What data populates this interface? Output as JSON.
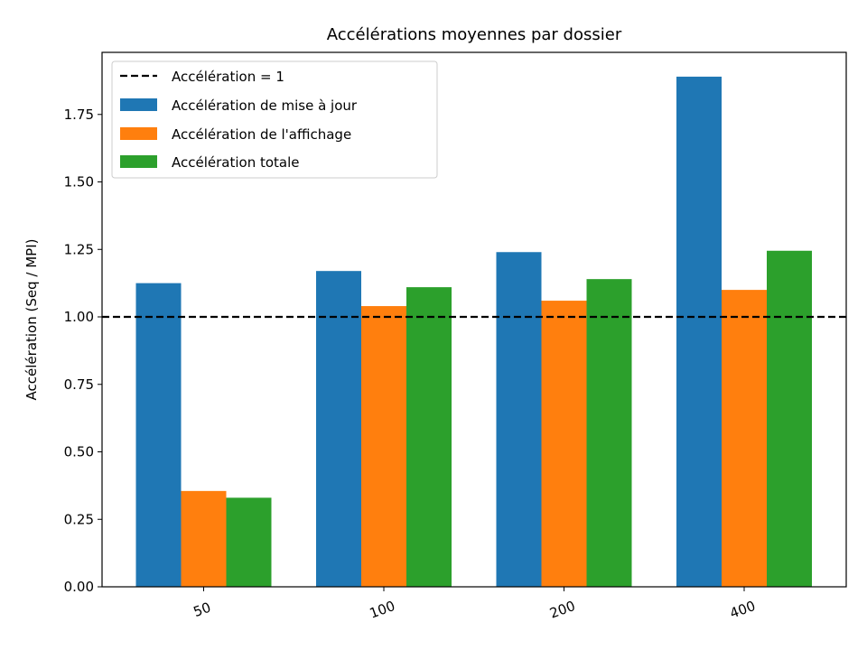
{
  "chart_data": {
    "type": "bar",
    "title": "Accélérations moyennes par dossier",
    "xlabel": "",
    "ylabel": "Accélération (Seq / MPI)",
    "categories": [
      "50",
      "100",
      "200",
      "400"
    ],
    "ylim": [
      0,
      1.98
    ],
    "yticks": [
      "0.00",
      "0.25",
      "0.50",
      "0.75",
      "1.00",
      "1.25",
      "1.50",
      "1.75"
    ],
    "grid": false,
    "legend_position": "top-left",
    "reference_line": {
      "label": "Accélération = 1",
      "value": 1.0,
      "style": "dashed",
      "color": "#000000"
    },
    "series": [
      {
        "name": "Accélération de mise à jour",
        "color": "#1f77b4",
        "values": [
          1.125,
          1.17,
          1.24,
          1.89
        ]
      },
      {
        "name": "Accélération de l'affichage",
        "color": "#ff7f0e",
        "values": [
          0.355,
          1.04,
          1.06,
          1.1
        ]
      },
      {
        "name": "Accélération totale",
        "color": "#2ca02c",
        "values": [
          0.33,
          1.11,
          1.14,
          1.245
        ]
      }
    ]
  }
}
